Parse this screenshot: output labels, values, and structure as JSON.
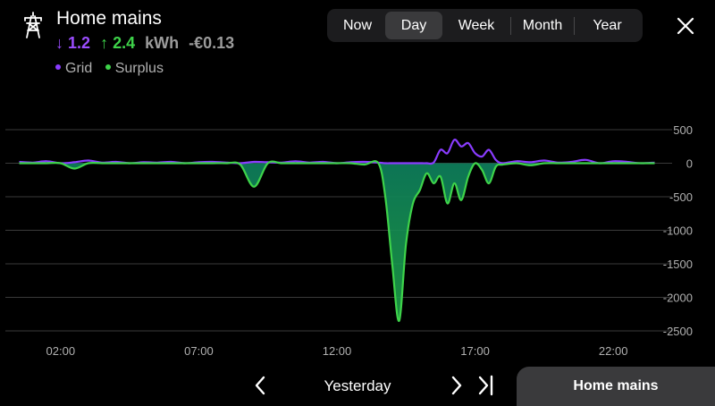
{
  "header": {
    "title": "Home mains",
    "icon": "power-pylon-icon",
    "stats": {
      "import_arrow": "↓",
      "import_value": "1.2",
      "export_arrow": "↑",
      "export_value": "2.4",
      "unit": "kWh",
      "cost": "-€0.13"
    },
    "legend": [
      {
        "label": "Grid",
        "color": "#8a3cff"
      },
      {
        "label": "Surplus",
        "color": "#3ed34a"
      }
    ]
  },
  "period_selector": {
    "options": [
      "Now",
      "Day",
      "Week",
      "Month",
      "Year"
    ],
    "selected": "Day"
  },
  "close_icon": "close-icon",
  "chart_data": {
    "type": "area",
    "x": [
      "00:30",
      "01:00",
      "01:30",
      "02:00",
      "02:30",
      "03:00",
      "03:30",
      "04:00",
      "04:30",
      "05:00",
      "05:30",
      "06:00",
      "06:30",
      "07:00",
      "07:30",
      "08:00",
      "08:30",
      "09:00",
      "09:30",
      "10:00",
      "10:30",
      "11:00",
      "11:30",
      "12:00",
      "12:30",
      "13:00",
      "13:30",
      "13:45",
      "14:00",
      "14:15",
      "14:30",
      "14:45",
      "15:00",
      "15:15",
      "15:30",
      "15:45",
      "16:00",
      "16:15",
      "16:30",
      "16:45",
      "17:00",
      "17:15",
      "17:30",
      "17:45",
      "18:00",
      "18:30",
      "19:00",
      "19:30",
      "20:00",
      "20:30",
      "21:00",
      "21:30",
      "22:00",
      "22:30",
      "23:00",
      "23:30"
    ],
    "series": [
      {
        "name": "Grid",
        "color": "#8a3cff",
        "values": [
          20,
          10,
          30,
          0,
          15,
          40,
          10,
          20,
          0,
          15,
          10,
          20,
          0,
          15,
          20,
          10,
          0,
          20,
          15,
          10,
          30,
          10,
          20,
          0,
          15,
          20,
          10,
          0,
          0,
          0,
          0,
          0,
          0,
          0,
          10,
          200,
          150,
          350,
          250,
          300,
          150,
          100,
          200,
          50,
          0,
          30,
          15,
          40,
          10,
          20,
          50,
          0,
          30,
          20,
          0,
          10
        ]
      },
      {
        "name": "Surplus",
        "color": "#3ed34a",
        "values": [
          0,
          0,
          0,
          0,
          -80,
          0,
          0,
          0,
          0,
          0,
          0,
          0,
          0,
          0,
          0,
          0,
          -20,
          -350,
          0,
          0,
          0,
          0,
          0,
          0,
          0,
          -20,
          0,
          -500,
          -1500,
          -2350,
          -1200,
          -600,
          -400,
          -150,
          -300,
          -200,
          -600,
          -300,
          -550,
          -200,
          0,
          -100,
          -300,
          -50,
          -20,
          0,
          -30,
          0,
          0,
          0,
          0,
          0,
          0,
          0,
          0,
          0
        ]
      }
    ],
    "yticks": [
      500,
      0,
      -500,
      -1000,
      -1500,
      -2000,
      -2500
    ],
    "xticks": [
      "02:00",
      "07:00",
      "12:00",
      "17:00",
      "22:00"
    ],
    "ylim": [
      -2500,
      500
    ],
    "grid": true
  },
  "navigation": {
    "prev_icon": "chevron-left-icon",
    "label": "Yesterday",
    "next_icon": "chevron-right-icon",
    "last_icon": "skip-to-end-icon",
    "mains_button": "Home mains"
  }
}
